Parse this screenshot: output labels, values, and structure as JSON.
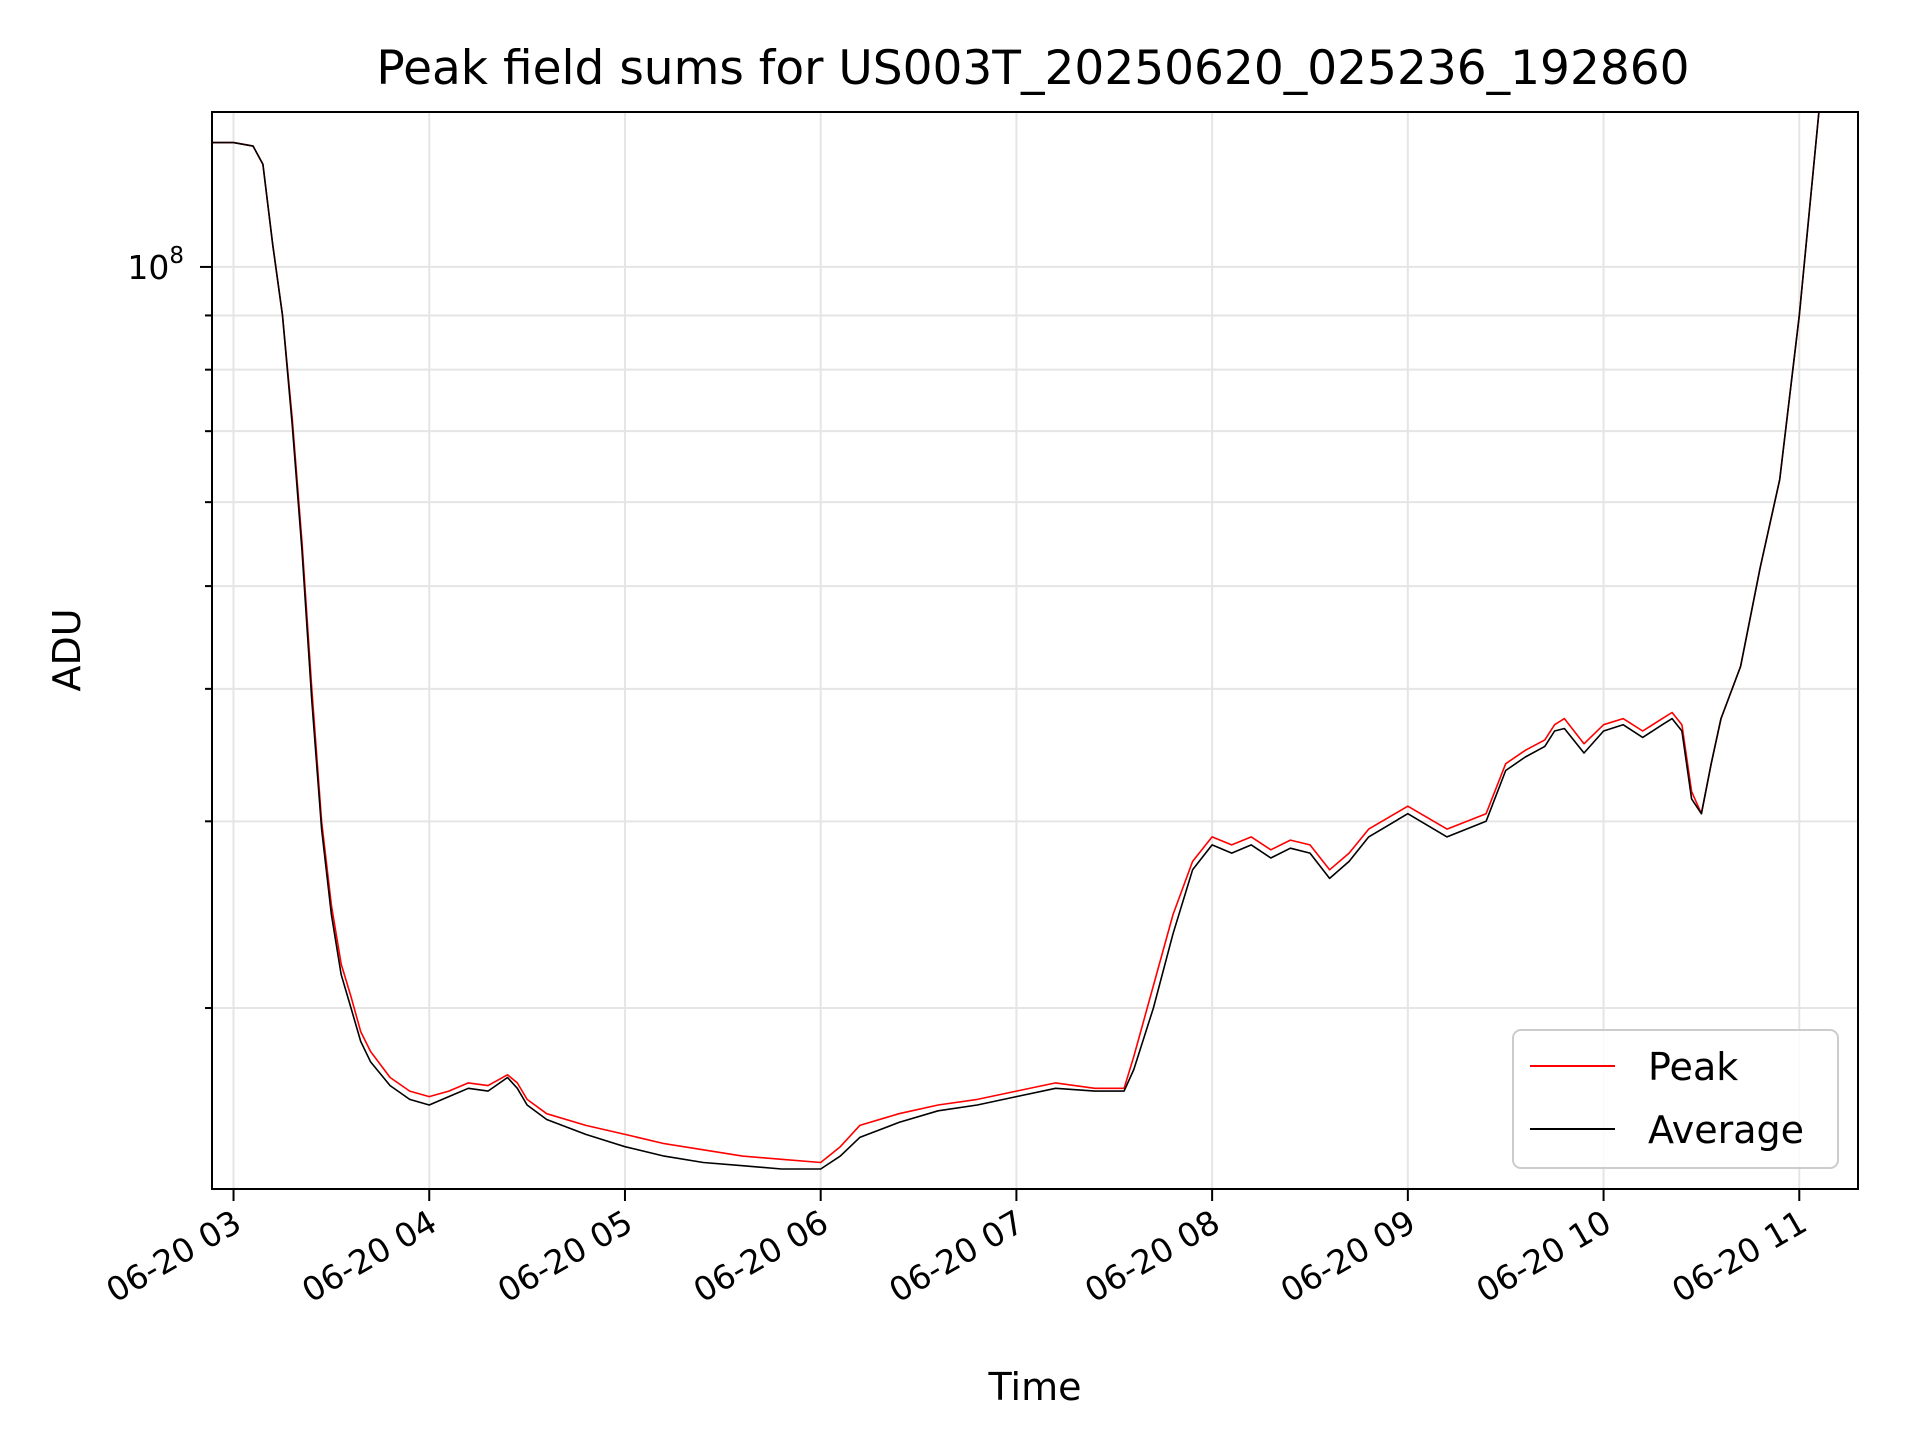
{
  "chart_data": {
    "type": "line",
    "title": "Peak field sums for US003T_20250620_025236_192860",
    "xlabel": "Time",
    "ylabel": "ADU",
    "x_ticks": [
      "06-20 03",
      "06-20 04",
      "06-20 05",
      "06-20 06",
      "06-20 07",
      "06-20 08",
      "06-20 09",
      "06-20 10",
      "06-20 11"
    ],
    "y_scale": "log",
    "y_tick_labels": [
      {
        "value": 100000000,
        "base": "10",
        "exp": "8"
      }
    ],
    "grid": true,
    "legend_position": "lower-right",
    "xlim_hours": [
      2.89,
      11.3
    ],
    "ylim": [
      13500000,
      140000000
    ],
    "series": [
      {
        "name": "Peak",
        "color": "#ff0000",
        "x_hours": [
          2.89,
          3.0,
          3.1,
          3.15,
          3.2,
          3.25,
          3.3,
          3.35,
          3.4,
          3.45,
          3.5,
          3.55,
          3.6,
          3.65,
          3.7,
          3.8,
          3.9,
          4.0,
          4.1,
          4.2,
          4.3,
          4.4,
          4.45,
          4.5,
          4.6,
          4.8,
          5.0,
          5.2,
          5.4,
          5.6,
          5.8,
          6.0,
          6.1,
          6.2,
          6.4,
          6.6,
          6.8,
          7.0,
          7.2,
          7.4,
          7.5,
          7.55,
          7.6,
          7.7,
          7.8,
          7.9,
          8.0,
          8.1,
          8.2,
          8.3,
          8.4,
          8.5,
          8.6,
          8.7,
          8.8,
          9.0,
          9.2,
          9.4,
          9.5,
          9.6,
          9.7,
          9.75,
          9.8,
          9.9,
          10.0,
          10.1,
          10.2,
          10.3,
          10.35,
          10.4,
          10.45,
          10.5,
          10.55,
          10.6,
          10.7,
          10.8,
          10.9,
          11.0,
          11.1
        ],
        "y": [
          131000000,
          131000000,
          130000000,
          125000000,
          105000000,
          90000000,
          72000000,
          55000000,
          40000000,
          30000000,
          25000000,
          22000000,
          20500000,
          19000000,
          18200000,
          17200000,
          16700000,
          16500000,
          16700000,
          17000000,
          16900000,
          17300000,
          17000000,
          16400000,
          15900000,
          15500000,
          15200000,
          14900000,
          14700000,
          14500000,
          14400000,
          14300000,
          14800000,
          15500000,
          15900000,
          16200000,
          16400000,
          16700000,
          17000000,
          16800000,
          16800000,
          16800000,
          18000000,
          21000000,
          24500000,
          27500000,
          29000000,
          28500000,
          29000000,
          28200000,
          28800000,
          28500000,
          27000000,
          28000000,
          29500000,
          31000000,
          29500000,
          30500000,
          34000000,
          35000000,
          35800000,
          37000000,
          37500000,
          35500000,
          37000000,
          37500000,
          36500000,
          37500000,
          38000000,
          37000000,
          32000000,
          30500000,
          34000000,
          37500000,
          42000000,
          52000000,
          63000000,
          90000000,
          140000000
        ]
      },
      {
        "name": "Average",
        "color": "#000000",
        "x_hours": [
          2.89,
          3.0,
          3.1,
          3.15,
          3.2,
          3.25,
          3.3,
          3.35,
          3.4,
          3.45,
          3.5,
          3.55,
          3.6,
          3.65,
          3.7,
          3.8,
          3.9,
          4.0,
          4.1,
          4.2,
          4.3,
          4.4,
          4.45,
          4.5,
          4.6,
          4.8,
          5.0,
          5.2,
          5.4,
          5.6,
          5.8,
          6.0,
          6.1,
          6.2,
          6.4,
          6.6,
          6.8,
          7.0,
          7.2,
          7.4,
          7.5,
          7.55,
          7.6,
          7.7,
          7.8,
          7.9,
          8.0,
          8.1,
          8.2,
          8.3,
          8.4,
          8.5,
          8.6,
          8.7,
          8.8,
          9.0,
          9.2,
          9.4,
          9.5,
          9.6,
          9.7,
          9.75,
          9.8,
          9.9,
          10.0,
          10.1,
          10.2,
          10.3,
          10.35,
          10.4,
          10.45,
          10.5,
          10.55,
          10.6,
          10.7,
          10.8,
          10.9,
          11.0,
          11.1
        ],
        "y": [
          131000000,
          131000000,
          130000000,
          125000000,
          105000000,
          90000000,
          71000000,
          54000000,
          39000000,
          29500000,
          24500000,
          21500000,
          20000000,
          18600000,
          17800000,
          16900000,
          16400000,
          16200000,
          16500000,
          16800000,
          16700000,
          17200000,
          16800000,
          16200000,
          15700000,
          15200000,
          14800000,
          14500000,
          14300000,
          14200000,
          14100000,
          14100000,
          14500000,
          15100000,
          15600000,
          16000000,
          16200000,
          16500000,
          16800000,
          16700000,
          16700000,
          16700000,
          17500000,
          20000000,
          23500000,
          27000000,
          28500000,
          28000000,
          28500000,
          27700000,
          28300000,
          28000000,
          26500000,
          27500000,
          29000000,
          30500000,
          29000000,
          30000000,
          33500000,
          34500000,
          35300000,
          36500000,
          36700000,
          34800000,
          36500000,
          37000000,
          36000000,
          37000000,
          37500000,
          36500000,
          31500000,
          30500000,
          34000000,
          37500000,
          42000000,
          52000000,
          63000000,
          90000000,
          140000000
        ]
      }
    ]
  }
}
